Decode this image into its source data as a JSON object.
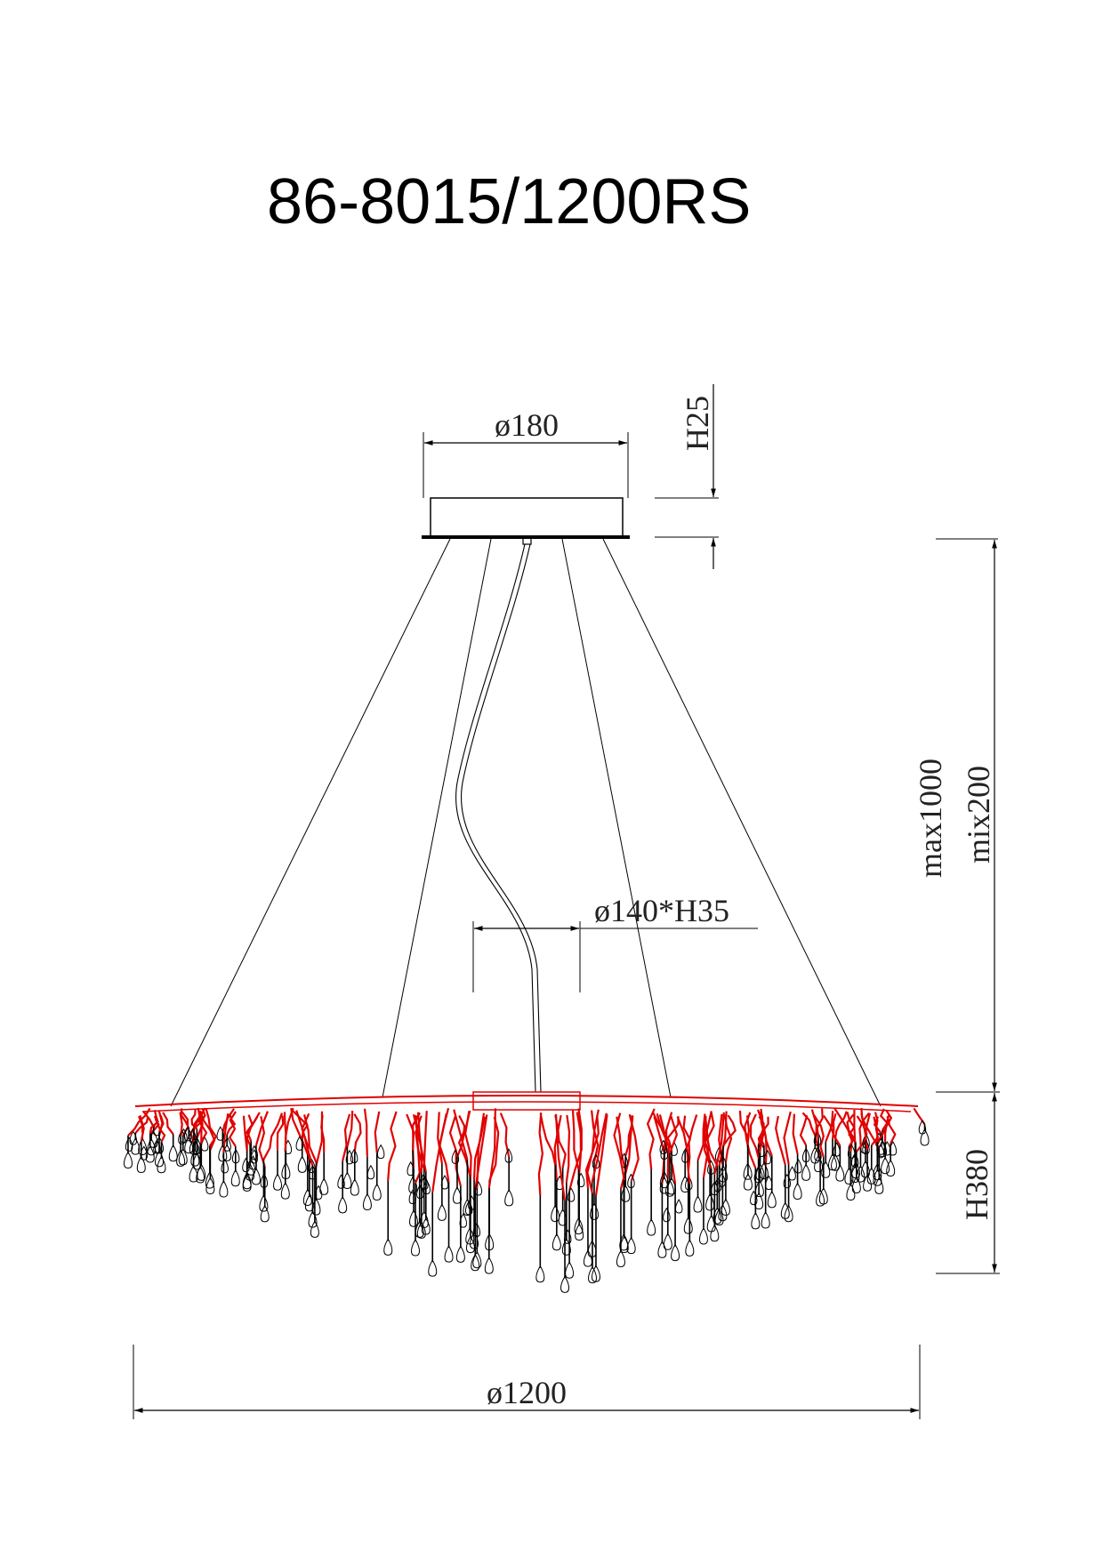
{
  "title": "86-8015/1200RS",
  "dimensions": {
    "canopy_diameter": "ø180",
    "canopy_height": "H25",
    "suspension_max": "max1000",
    "suspension_min": "mix200",
    "center_plate": "ø140*H35",
    "body_height": "H380",
    "body_diameter": "ø1200"
  },
  "colors": {
    "line": "#000000",
    "frame": "#e00000"
  }
}
